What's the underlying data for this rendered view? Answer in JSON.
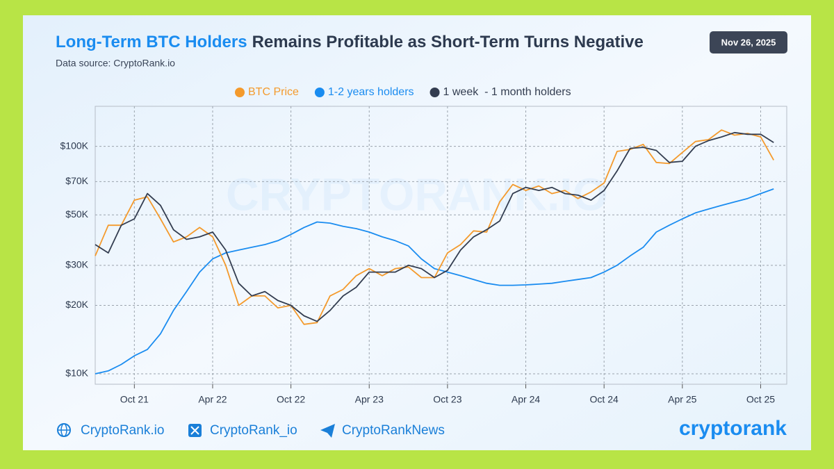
{
  "header": {
    "title_highlight": "Long-Term BTC Holders",
    "title_rest": "Remains Profitable as Short-Term Turns Negative",
    "date": "Nov 26, 2025",
    "source": "Data source: CryptoRank.io"
  },
  "watermark": "CRYPTORANK.IO",
  "footer": {
    "links": [
      "CryptoRank.io",
      "CryptoRank_io",
      "CryptoRankNews"
    ],
    "logo": "cryptorank"
  },
  "chart_data": {
    "type": "line",
    "log_y": true,
    "grid": true,
    "legend": "top",
    "x": [
      "2021-07",
      "2021-08",
      "2021-09",
      "2021-10",
      "2021-11",
      "2021-12",
      "2022-01",
      "2022-02",
      "2022-03",
      "2022-04",
      "2022-05",
      "2022-06",
      "2022-07",
      "2022-08",
      "2022-09",
      "2022-10",
      "2022-11",
      "2022-12",
      "2023-01",
      "2023-02",
      "2023-03",
      "2023-04",
      "2023-05",
      "2023-06",
      "2023-07",
      "2023-08",
      "2023-09",
      "2023-10",
      "2023-11",
      "2023-12",
      "2024-01",
      "2024-02",
      "2024-03",
      "2024-04",
      "2024-05",
      "2024-06",
      "2024-07",
      "2024-08",
      "2024-09",
      "2024-10",
      "2024-11",
      "2024-12",
      "2025-01",
      "2025-02",
      "2025-03",
      "2025-04",
      "2025-05",
      "2025-06",
      "2025-07",
      "2025-08",
      "2025-09",
      "2025-10",
      "2025-11"
    ],
    "xlim": [
      "2021-07",
      "2025-12"
    ],
    "xticks": [
      {
        "value": "2021-10",
        "label": "Oct 21"
      },
      {
        "value": "2022-04",
        "label": "Apr 22"
      },
      {
        "value": "2022-10",
        "label": "Oct 22"
      },
      {
        "value": "2023-04",
        "label": "Apr 23"
      },
      {
        "value": "2023-10",
        "label": "Oct 23"
      },
      {
        "value": "2024-04",
        "label": "Apr 24"
      },
      {
        "value": "2024-10",
        "label": "Oct 24"
      },
      {
        "value": "2025-04",
        "label": "Apr 25"
      },
      {
        "value": "2025-10",
        "label": "Oct 25"
      }
    ],
    "ylim": [
      9000,
      150000
    ],
    "yticks": [
      {
        "value": 10000,
        "label": "$10K"
      },
      {
        "value": 20000,
        "label": "$20K"
      },
      {
        "value": 30000,
        "label": "$30K"
      },
      {
        "value": 50000,
        "label": "$50K"
      },
      {
        "value": 70000,
        "label": "$70K"
      },
      {
        "value": 100000,
        "label": "$100K"
      }
    ],
    "series": [
      {
        "name": "BTC Price",
        "color": "#f49a2c",
        "values": [
          33000,
          45000,
          45000,
          58000,
          60000,
          48000,
          38000,
          40000,
          44000,
          40000,
          30000,
          20000,
          22000,
          22000,
          19500,
          20000,
          16500,
          16800,
          22000,
          23500,
          27000,
          29000,
          27000,
          29000,
          29500,
          26500,
          26500,
          34000,
          37000,
          42500,
          42000,
          57000,
          68000,
          64000,
          67000,
          62000,
          64000,
          59000,
          63000,
          69000,
          95000,
          97000,
          102000,
          85000,
          84000,
          94000,
          105000,
          107000,
          118000,
          112000,
          114000,
          110000,
          87000
        ]
      },
      {
        "name": "1-2 years holders",
        "color": "#1a8cf0",
        "values": [
          10000,
          10300,
          11000,
          12000,
          12800,
          15000,
          19000,
          23000,
          28000,
          32000,
          34000,
          35000,
          36000,
          37000,
          38500,
          41000,
          44000,
          46500,
          46000,
          44500,
          43500,
          42000,
          40000,
          38500,
          36500,
          32000,
          29000,
          28000,
          27000,
          26000,
          25000,
          24500,
          24500,
          24600,
          24800,
          25000,
          25500,
          26000,
          26500,
          28000,
          30000,
          33000,
          36000,
          42000,
          45000,
          48000,
          51000,
          53000,
          55000,
          57000,
          59000,
          62000,
          65000
        ]
      },
      {
        "name": "1 week  - 1 month holders",
        "color": "#333d50",
        "values": [
          37000,
          34000,
          45000,
          48000,
          62000,
          55000,
          43000,
          39000,
          40000,
          42000,
          35000,
          25000,
          22000,
          23000,
          21000,
          20000,
          18000,
          17000,
          19000,
          22000,
          24000,
          28000,
          28000,
          28000,
          30000,
          29000,
          26500,
          28500,
          35000,
          40000,
          43000,
          47000,
          62000,
          66000,
          64000,
          66000,
          62000,
          61000,
          58000,
          64000,
          78000,
          98000,
          99000,
          96000,
          85000,
          86000,
          100000,
          106000,
          110000,
          115000,
          113000,
          113000,
          104000
        ]
      }
    ]
  }
}
